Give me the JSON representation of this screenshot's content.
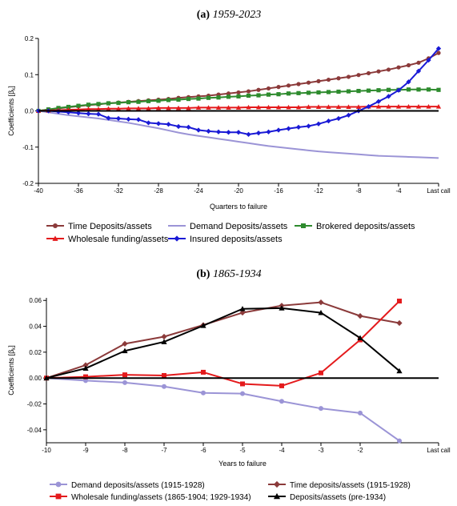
{
  "chart_data": [
    {
      "type": "line",
      "title_prefix": "(a)",
      "title_italic": "1959-2023",
      "xlabel": "Quarters to failure",
      "ylabel": "Coefficients [β",
      "ylabel_sub": "k",
      "ylabel_end": "]",
      "xlim": [
        -40,
        0
      ],
      "ylim": [
        -0.2,
        0.2
      ],
      "xticks": [
        -40,
        -36,
        -32,
        -28,
        -24,
        -20,
        -16,
        -12,
        -8,
        -4,
        0
      ],
      "xtick_labels": [
        "-40",
        "-36",
        "-32",
        "-28",
        "-24",
        "-20",
        "-16",
        "-12",
        "-8",
        "-4",
        "Last call"
      ],
      "yticks": [
        -0.2,
        -0.1,
        0.0,
        0.1,
        0.2
      ],
      "ytick_labels": [
        "-0.2",
        "-0.1",
        "0.0",
        "0.1",
        "0.2"
      ],
      "zero_line": true,
      "legend_position": "bottom",
      "x": [
        -40,
        -39,
        -38,
        -37,
        -36,
        -35,
        -34,
        -33,
        -32,
        -31,
        -30,
        -29,
        -28,
        -27,
        -26,
        -25,
        -24,
        -23,
        -22,
        -21,
        -20,
        -19,
        -18,
        -17,
        -16,
        -15,
        -14,
        -13,
        -12,
        -11,
        -10,
        -9,
        -8,
        -7,
        -6,
        -5,
        -4,
        -3,
        -2,
        -1,
        0
      ],
      "series": [
        {
          "name": "Time Deposits/assets",
          "color": "#8b3a3a",
          "marker": "circle",
          "values": [
            0.0,
            0.004,
            0.007,
            0.01,
            0.013,
            0.016,
            0.018,
            0.021,
            0.023,
            0.025,
            0.027,
            0.029,
            0.031,
            0.033,
            0.036,
            0.038,
            0.04,
            0.042,
            0.045,
            0.048,
            0.051,
            0.054,
            0.058,
            0.062,
            0.066,
            0.07,
            0.074,
            0.078,
            0.082,
            0.086,
            0.09,
            0.094,
            0.099,
            0.104,
            0.109,
            0.114,
            0.12,
            0.126,
            0.133,
            0.145,
            0.16
          ]
        },
        {
          "name": "Demand Deposits/assets",
          "color": "#9b94d6",
          "marker": "none",
          "values": [
            0.0,
            -0.004,
            -0.008,
            -0.012,
            -0.015,
            -0.018,
            -0.021,
            -0.025,
            -0.029,
            -0.033,
            -0.038,
            -0.043,
            -0.048,
            -0.054,
            -0.06,
            -0.065,
            -0.069,
            -0.073,
            -0.077,
            -0.081,
            -0.085,
            -0.089,
            -0.093,
            -0.097,
            -0.1,
            -0.103,
            -0.106,
            -0.109,
            -0.112,
            -0.114,
            -0.116,
            -0.118,
            -0.12,
            -0.122,
            -0.124,
            -0.125,
            -0.126,
            -0.127,
            -0.128,
            -0.129,
            -0.13
          ]
        },
        {
          "name": "Brokered deposits/assets",
          "color": "#2e8b2e",
          "marker": "square",
          "values": [
            0.0,
            0.004,
            0.008,
            0.011,
            0.014,
            0.017,
            0.019,
            0.021,
            0.022,
            0.024,
            0.025,
            0.027,
            0.028,
            0.03,
            0.031,
            0.033,
            0.034,
            0.036,
            0.037,
            0.039,
            0.04,
            0.042,
            0.043,
            0.045,
            0.046,
            0.048,
            0.049,
            0.05,
            0.051,
            0.052,
            0.053,
            0.054,
            0.055,
            0.056,
            0.057,
            0.058,
            0.058,
            0.059,
            0.059,
            0.059,
            0.058
          ]
        },
        {
          "name": "Wholesale funding/assets",
          "color": "#e41a1c",
          "marker": "triangle",
          "values": [
            0.0,
            0.001,
            0.002,
            0.003,
            0.004,
            0.005,
            0.005,
            0.006,
            0.006,
            0.007,
            0.007,
            0.007,
            0.008,
            0.008,
            0.008,
            0.008,
            0.009,
            0.009,
            0.009,
            0.009,
            0.009,
            0.01,
            0.01,
            0.01,
            0.01,
            0.01,
            0.01,
            0.011,
            0.011,
            0.011,
            0.011,
            0.011,
            0.011,
            0.012,
            0.012,
            0.012,
            0.012,
            0.012,
            0.012,
            0.012,
            0.012
          ]
        },
        {
          "name": "Insured deposits/assets",
          "color": "#1a1ad6",
          "marker": "diamond",
          "values": [
            0.0,
            0.0,
            -0.002,
            -0.004,
            -0.006,
            -0.008,
            -0.009,
            -0.02,
            -0.021,
            -0.023,
            -0.024,
            -0.033,
            -0.035,
            -0.037,
            -0.043,
            -0.045,
            -0.053,
            -0.056,
            -0.058,
            -0.059,
            -0.059,
            -0.065,
            -0.061,
            -0.058,
            -0.053,
            -0.049,
            -0.045,
            -0.042,
            -0.036,
            -0.028,
            -0.021,
            -0.012,
            0.0,
            0.012,
            0.026,
            0.04,
            0.057,
            0.08,
            0.11,
            0.14,
            0.172
          ]
        }
      ]
    },
    {
      "type": "line",
      "title_prefix": "(b)",
      "title_italic": "1865-1934",
      "xlabel": "Years to failure",
      "ylabel": "Coefficients [β",
      "ylabel_sub": "k",
      "ylabel_end": "]",
      "xlim": [
        -10,
        0
      ],
      "ylim": [
        -0.05,
        0.062
      ],
      "xticks": [
        -10,
        -9,
        -8,
        -7,
        -6,
        -5,
        -4,
        -3,
        -2,
        0
      ],
      "xtick_labels": [
        "-10",
        "-9",
        "-8",
        "-7",
        "-6",
        "-5",
        "-4",
        "-3",
        "-2",
        "Last call"
      ],
      "yticks": [
        -0.04,
        -0.02,
        0.0,
        0.02,
        0.04,
        0.06
      ],
      "ytick_labels": [
        "-0.04",
        "-0.02",
        "0.00",
        "0.02",
        "0.04",
        "0.06"
      ],
      "zero_line": true,
      "legend_position": "bottom",
      "x": [
        -10,
        -9,
        -8,
        -7,
        -6,
        -5,
        -4,
        -3,
        -2,
        -1
      ],
      "series": [
        {
          "name": "Demand deposits/assets (1915-1928)",
          "color": "#9b94d6",
          "marker": "circle",
          "values": [
            0.0,
            -0.002,
            -0.0035,
            -0.0065,
            -0.0115,
            -0.012,
            -0.018,
            -0.0235,
            -0.027,
            -0.0485
          ]
        },
        {
          "name": "Time deposits/assets (1915-1928)",
          "color": "#8b3a3a",
          "marker": "diamond",
          "values": [
            0.0,
            0.01,
            0.0265,
            0.032,
            0.041,
            0.0505,
            0.056,
            0.0585,
            0.048,
            0.0425
          ]
        },
        {
          "name": "Wholesale funding/assets (1865-1904; 1929-1934)",
          "color": "#e41a1c",
          "marker": "square",
          "values": [
            0.0,
            0.001,
            0.0025,
            0.002,
            0.0045,
            -0.0045,
            -0.006,
            0.004,
            0.0295,
            0.0595
          ]
        },
        {
          "name": "Deposits/assets (pre-1934)",
          "color": "#000000",
          "marker": "triangle",
          "values": [
            0.0,
            0.0075,
            0.021,
            0.028,
            0.0405,
            0.0535,
            0.054,
            0.0505,
            0.031,
            0.0055
          ]
        }
      ]
    }
  ]
}
